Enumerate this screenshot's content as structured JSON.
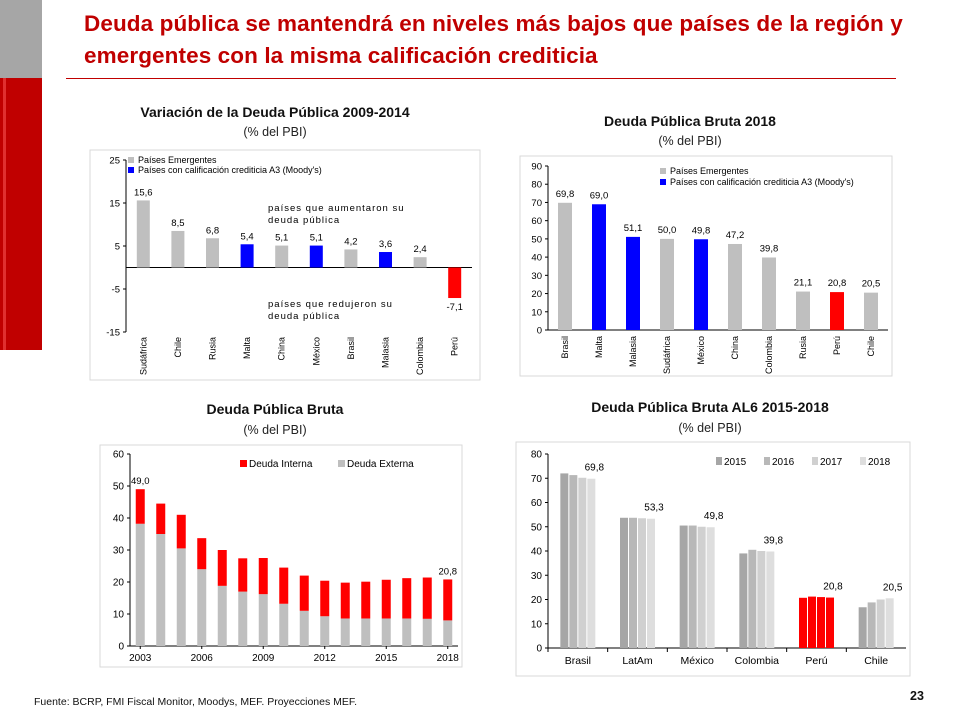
{
  "slide": {
    "title": "Deuda pública se mantendrá en niveles más bajos que países de la región y emergentes con la misma calificación crediticia",
    "source": "Fuente: BCRP, FMI Fiscal Monitor, Moodys, MEF. Proyecciones MEF.",
    "page_number": "23"
  },
  "colors": {
    "red": "#ff0000",
    "blue": "#0000ff",
    "gray": "#bfbfbf",
    "title_red": "#c00000"
  },
  "chart_data": [
    {
      "id": "chart1",
      "type": "bar",
      "title": "Variación de la Deuda Pública 2009-2014",
      "subtitle": "(% del PBI)",
      "categories": [
        "Sudáfrica",
        "Chile",
        "Rusia",
        "Malta",
        "China",
        "México",
        "Brasil",
        "Malasia",
        "Colombia",
        "Perú"
      ],
      "values": [
        15.6,
        8.5,
        6.8,
        5.4,
        5.1,
        5.1,
        4.2,
        3.6,
        2.4,
        -7.1
      ],
      "value_labels": [
        "15,6",
        "8,5",
        "6,8",
        "5,4",
        "5,1",
        "5,1",
        "4,2",
        "3,6",
        "2,4",
        "-7,1"
      ],
      "bar_colors": [
        "gray",
        "gray",
        "gray",
        "blue",
        "gray",
        "blue",
        "gray",
        "blue",
        "gray",
        "red"
      ],
      "ylim": [
        -15,
        25
      ],
      "yticks": [
        25,
        15,
        5,
        -5,
        -15
      ],
      "ytick_labels": [
        "25",
        "15",
        "5",
        "-5",
        "-15"
      ],
      "legend": [
        "Países Emergentes",
        "Países con calificación crediticia A3 (Moody's)"
      ],
      "annotations": [
        "países que aumentaron su deuda pública",
        "países que redujeron su deuda pública"
      ]
    },
    {
      "id": "chart2",
      "type": "bar",
      "title": "Deuda Pública Bruta 2018",
      "subtitle": "(% del PBI)",
      "categories": [
        "Brasil",
        "Malta",
        "Malasia",
        "Sudáfrica",
        "México",
        "China",
        "Colombia",
        "Rusia",
        "Perú",
        "Chile"
      ],
      "values": [
        69.8,
        69.0,
        51.1,
        50.0,
        49.8,
        47.2,
        39.8,
        21.1,
        20.8,
        20.5
      ],
      "value_labels": [
        "69,8",
        "69,0",
        "51,1",
        "50,0",
        "49,8",
        "47,2",
        "39,8",
        "21,1",
        "20,8",
        "20,5"
      ],
      "bar_colors": [
        "gray",
        "blue",
        "blue",
        "gray",
        "blue",
        "gray",
        "gray",
        "gray",
        "red",
        "gray"
      ],
      "ylim": [
        0,
        90
      ],
      "yticks": [
        0,
        10,
        20,
        30,
        40,
        50,
        60,
        70,
        80,
        90
      ],
      "ytick_labels": [
        "0",
        "10",
        "20",
        "30",
        "40",
        "50",
        "60",
        "70",
        "80",
        "90"
      ],
      "legend": [
        "Países Emergentes",
        "Países con calificación crediticia A3 (Moody's)"
      ]
    },
    {
      "id": "chart3",
      "type": "bar",
      "stacked": true,
      "title": "Deuda Pública Bruta",
      "subtitle": "(% del PBI)",
      "years": [
        2003,
        2004,
        2005,
        2006,
        2007,
        2008,
        2009,
        2010,
        2011,
        2012,
        2013,
        2014,
        2015,
        2016,
        2017,
        2018
      ],
      "xtick_labels": [
        "2003",
        "2006",
        "2009",
        "2012",
        "2015",
        "2018"
      ],
      "series": [
        {
          "name": "Deuda Interna",
          "color": "red",
          "values": [
            10.8,
            9.5,
            10.5,
            9.7,
            11.2,
            10.4,
            11.3,
            11.3,
            11.0,
            11.1,
            11.2,
            11.5,
            12.1,
            12.6,
            12.9,
            12.8
          ]
        },
        {
          "name": "Deuda Externa",
          "color": "gray",
          "values": [
            38.2,
            35.0,
            30.5,
            24.0,
            18.8,
            17.0,
            16.2,
            13.2,
            11.0,
            9.3,
            8.6,
            8.6,
            8.6,
            8.6,
            8.5,
            8.0
          ]
        }
      ],
      "value_labels": [
        {
          "year": 2003,
          "text": "49,0"
        },
        {
          "year": 2018,
          "text": "20,8"
        }
      ],
      "ylim": [
        0,
        60
      ],
      "yticks": [
        0,
        10,
        20,
        30,
        40,
        50,
        60
      ],
      "ytick_labels": [
        "0",
        "10",
        "20",
        "30",
        "40",
        "50",
        "60"
      ]
    },
    {
      "id": "chart4",
      "type": "bar",
      "title": "Deuda Pública Bruta AL6 2015-2018",
      "subtitle": "(% del PBI)",
      "categories": [
        "Brasil",
        "LatAm",
        "México",
        "Colombia",
        "Perú",
        "Chile"
      ],
      "series": [
        {
          "name": "2015",
          "color": "#a6a6a6",
          "values": [
            72.0,
            53.7,
            50.5,
            39.0,
            20.7,
            16.8
          ]
        },
        {
          "name": "2016",
          "color": "#b8b8b8",
          "values": [
            71.3,
            53.7,
            50.5,
            40.5,
            21.2,
            18.8
          ]
        },
        {
          "name": "2017",
          "color": "#d0d0d0",
          "values": [
            70.2,
            53.5,
            50.0,
            40.0,
            21.0,
            20.0
          ]
        },
        {
          "name": "2018",
          "color": "#dedede",
          "values": [
            69.8,
            53.3,
            49.8,
            39.8,
            20.8,
            20.5
          ]
        }
      ],
      "highlight_category": "Perú",
      "highlight_color": "red",
      "value_labels": [
        "69,8",
        "53,3",
        "49,8",
        "39,8",
        "20,8",
        "20,5"
      ],
      "ylim": [
        0,
        80
      ],
      "yticks": [
        0,
        10,
        20,
        30,
        40,
        50,
        60,
        70,
        80
      ],
      "ytick_labels": [
        "0",
        "10",
        "20",
        "30",
        "40",
        "50",
        "60",
        "70",
        "80"
      ]
    }
  ]
}
